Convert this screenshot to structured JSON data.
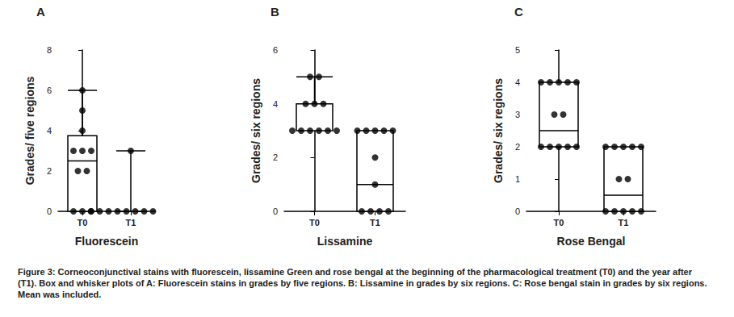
{
  "chart_data": [
    {
      "type": "boxplot",
      "title": "A",
      "x_label": "Fluorescein",
      "y_label": "Grades/ five regions",
      "categories": [
        "T0",
        "T1"
      ],
      "boxes": [
        [
          0,
          0,
          2.5,
          3.75,
          6
        ],
        [
          0,
          0,
          0,
          0,
          3
        ]
      ],
      "points": [
        [
          6,
          5,
          4,
          3,
          3,
          3,
          2,
          2,
          0,
          0,
          0
        ],
        [
          3,
          0,
          0,
          0,
          0,
          0,
          0,
          0,
          0,
          0,
          0
        ]
      ],
      "ylim": [
        0,
        8
      ],
      "yticks": [
        0,
        2,
        4,
        6,
        8
      ],
      "color": "#000000",
      "marker": "circle"
    },
    {
      "type": "boxplot",
      "title": "B",
      "x_label": "Lissamine",
      "y_label": "Grades/ six regions",
      "categories": [
        "T0",
        "T1"
      ],
      "boxes": [
        [
          3,
          3,
          3,
          4,
          5
        ],
        [
          0,
          0,
          1,
          3,
          3
        ]
      ],
      "points": [
        [
          5,
          5,
          4,
          4,
          4,
          3,
          3,
          3,
          3,
          3,
          3
        ],
        [
          3,
          3,
          3,
          3,
          3,
          2,
          1,
          0,
          0,
          0,
          0
        ]
      ],
      "ylim": [
        0,
        6
      ],
      "yticks": [
        0,
        2,
        4,
        6
      ],
      "color": "#000000",
      "marker": "circle"
    },
    {
      "type": "boxplot",
      "title": "C",
      "x_label": "Rose Bengal",
      "y_label": "Grades/ six regions",
      "categories": [
        "T0",
        "T1"
      ],
      "boxes": [
        [
          2,
          2,
          2.5,
          4,
          4
        ],
        [
          0,
          0,
          0.5,
          2,
          2
        ]
      ],
      "points": [
        [
          4,
          4,
          4,
          4,
          4,
          3,
          3,
          2,
          2,
          2,
          2,
          2
        ],
        [
          2,
          2,
          2,
          2,
          2,
          1,
          1,
          0,
          0,
          0,
          0,
          0
        ]
      ],
      "ylim": [
        0,
        5
      ],
      "yticks": [
        0,
        1,
        2,
        3,
        4,
        5
      ],
      "color": "#000000",
      "marker": "circle"
    }
  ],
  "caption": "Figure 3: Corneoconjunctival stains with fluorescein, lissamine Green and rose bengal at the beginning of the pharmacological treatment (T0) and the year after (T1). Box and whisker plots of A: Fluorescein stains in grades by five regions. B: Lissamine in grades by six regions. C: Rose bengal stain in grades by six regions. Mean was included."
}
